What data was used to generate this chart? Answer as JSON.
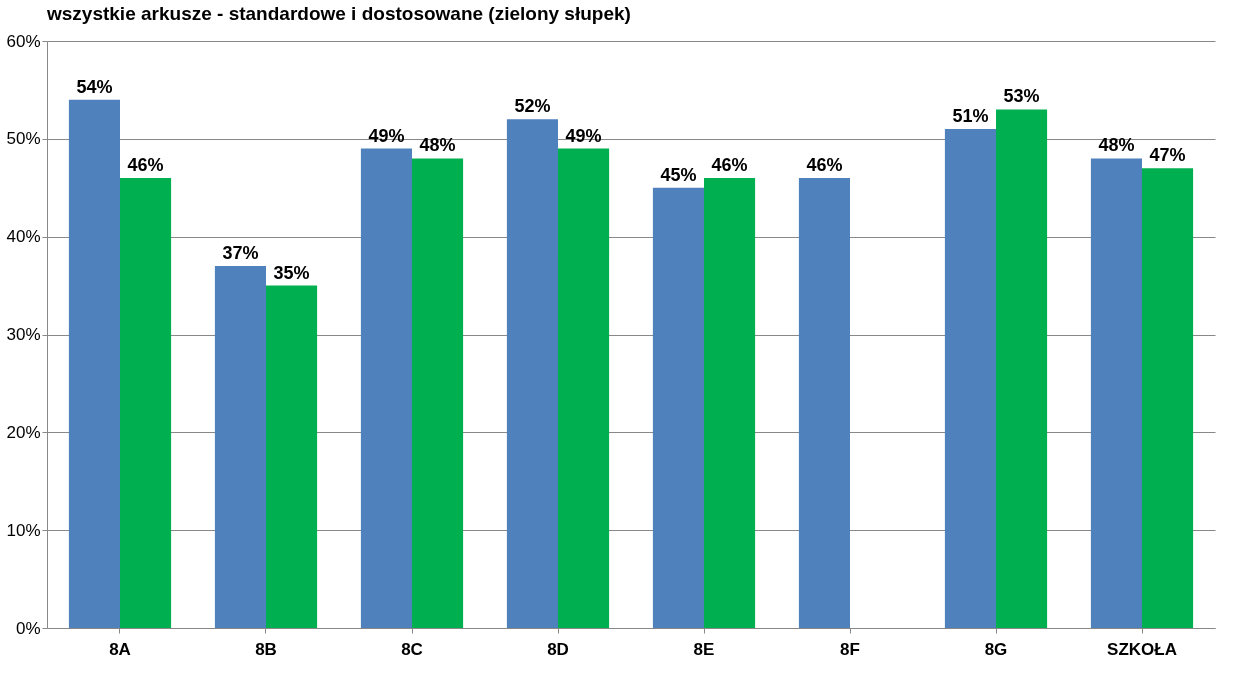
{
  "chart_data": {
    "type": "bar",
    "title": "wszystkie arkusze - standardowe i dostosowane (zielony słupek)",
    "categories": [
      "8A",
      "8B",
      "8C",
      "8D",
      "8E",
      "8F",
      "8G",
      "SZKOŁA"
    ],
    "series": [
      {
        "color": "#4f81bd",
        "values": [
          54,
          37,
          49,
          52,
          45,
          46,
          51,
          48
        ],
        "value_labels": [
          "54%",
          "37%",
          "49%",
          "52%",
          "45%",
          "46%",
          "51%",
          "48%"
        ]
      },
      {
        "color": "#00b050",
        "values": [
          46,
          35,
          48,
          49,
          46,
          null,
          53,
          47
        ],
        "value_labels": [
          "46%",
          "35%",
          "48%",
          "49%",
          "46%",
          null,
          "53%",
          "47%"
        ]
      }
    ],
    "ylim": [
      0,
      60
    ],
    "yticks": [
      {
        "value": 0,
        "label": "0%"
      },
      {
        "value": 10,
        "label": "10%"
      },
      {
        "value": 20,
        "label": "20%"
      },
      {
        "value": 30,
        "label": "30%"
      },
      {
        "value": 40,
        "label": "40%"
      },
      {
        "value": 50,
        "label": "50%"
      },
      {
        "value": 60,
        "label": "60%"
      }
    ],
    "grid": "y"
  }
}
